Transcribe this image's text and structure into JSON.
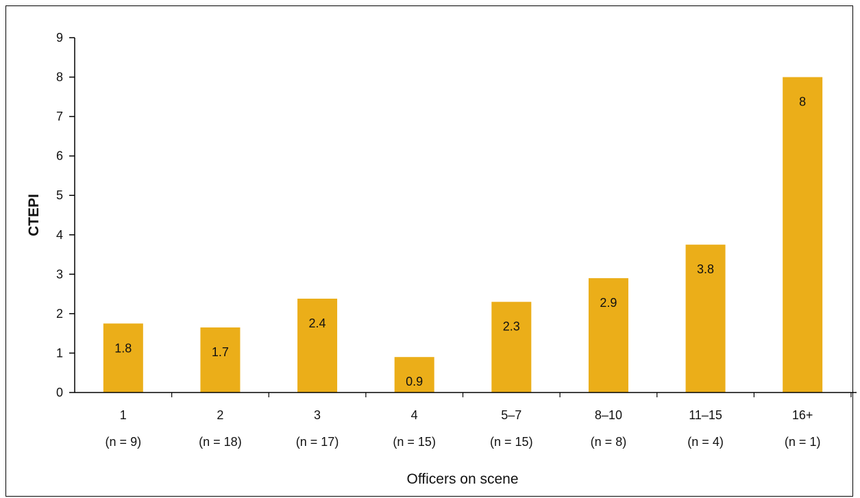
{
  "chart_data": {
    "type": "bar",
    "categories": [
      "1",
      "2",
      "3",
      "4",
      "5–7",
      "8–10",
      "11–15",
      "16+"
    ],
    "sample_sizes": [
      "(n = 9)",
      "(n = 18)",
      "(n = 17)",
      "(n = 15)",
      "(n = 15)",
      "(n = 8)",
      "(n = 4)",
      "(n = 1)"
    ],
    "values": [
      1.75,
      1.65,
      2.38,
      0.9,
      2.3,
      2.9,
      3.75,
      8.0
    ],
    "data_labels": [
      "1.8",
      "1.7",
      "2.4",
      "0.9",
      "2.3",
      "2.9",
      "3.8",
      "8"
    ],
    "xlabel": "Officers on scene",
    "ylabel": "CTEPI",
    "ylim": [
      0,
      9
    ],
    "yticks": [
      "0",
      "1",
      "2",
      "3",
      "4",
      "5",
      "6",
      "7",
      "8",
      "9"
    ],
    "grid": false,
    "bar_color": "#ebae19"
  }
}
